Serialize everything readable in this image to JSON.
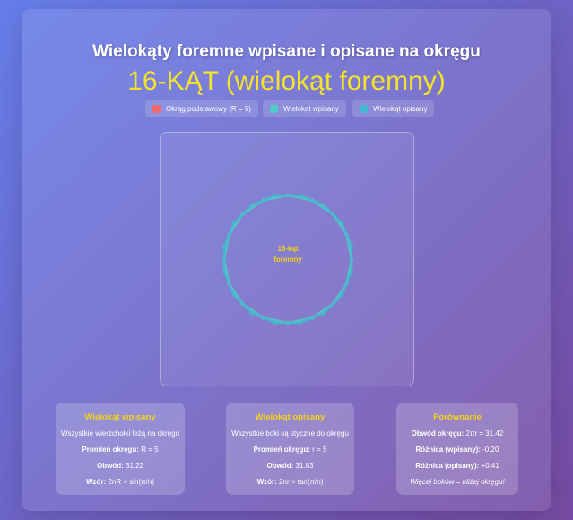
{
  "header": {
    "title": "Wielokąty foremne wpisane i opisane na okręgu",
    "subtitle": "16-KĄT (wielokąt foremny)"
  },
  "legend": [
    {
      "label": "Okrąg podstawowy (R = 5)",
      "color": "#f06c6c"
    },
    {
      "label": "Wielokąt wpisany",
      "color": "#4ecdc4"
    },
    {
      "label": "Wielokąt opisany",
      "color": "#45b7d1"
    }
  ],
  "canvas": {
    "sides": 16,
    "center_label_line1": "16-kąt",
    "center_label_line2": "foremny"
  },
  "cards": {
    "inscribed": {
      "title": "Wielokąt wpisany",
      "desc": "Wszystkie wierzchołki leżą na okręgu",
      "radius_label": "Promień okręgu:",
      "radius_value": " R = 5",
      "perimeter_label": "Obwód:",
      "perimeter_value": " 31.22",
      "formula_label": "Wzór:",
      "formula_value": " 2nR × sin(π/n)"
    },
    "circumscribed": {
      "title": "Wielokąt opisany",
      "desc": "Wszystkie boki są styczne do okręgu",
      "radius_label": "Promień okręgu:",
      "radius_value": " r = 5",
      "perimeter_label": "Obwód:",
      "perimeter_value": " 31.83",
      "formula_label": "Wzór:",
      "formula_value": " 2nr × tan(π/n)"
    },
    "comparison": {
      "title": "Porównanie",
      "circle_label": "Obwód okręgu:",
      "circle_value": " 2πr = 31.42",
      "diff_in_label": "Różnica (wpisany):",
      "diff_in_value": " -0.20",
      "diff_out_label": "Różnica (opisany):",
      "diff_out_value": " +0.41",
      "note": "Więcej boków = bliżej okręgu!"
    }
  }
}
